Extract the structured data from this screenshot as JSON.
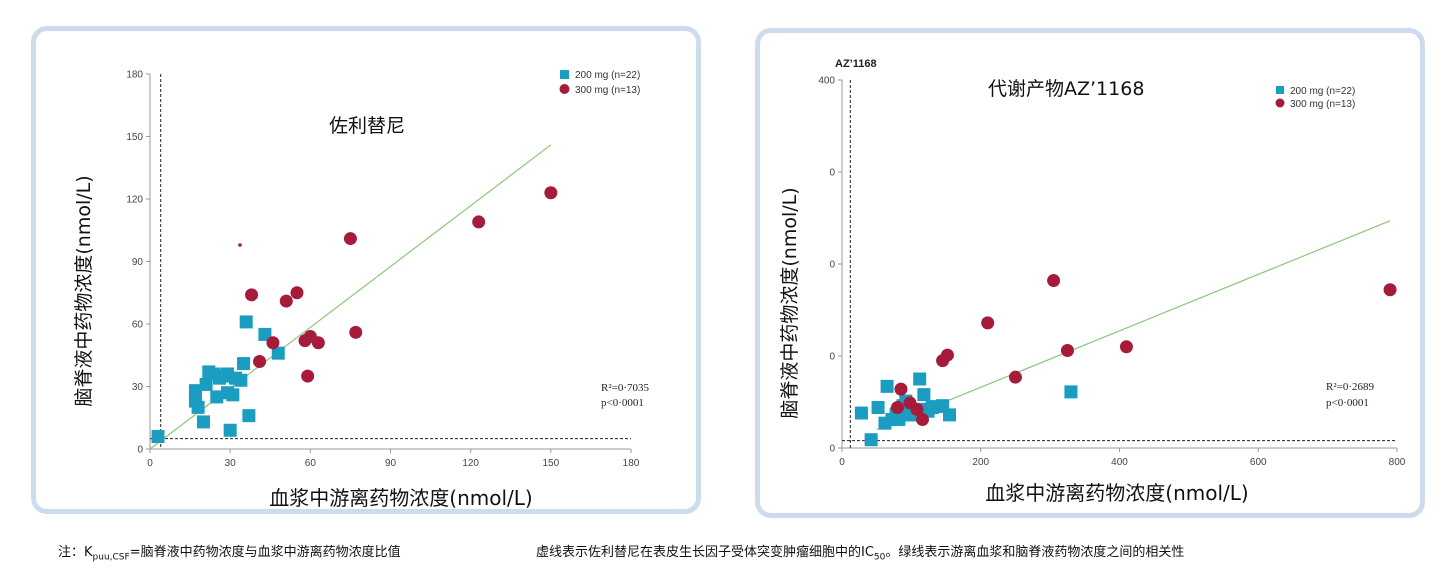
{
  "colors": {
    "series_200": "#1a9dc0",
    "series_300": "#a61a3a",
    "fit": "#8cc67a",
    "panel_border": "#ccdced"
  },
  "chart_data": [
    {
      "type": "scatter",
      "title": "佐利替尼",
      "xlabel": "血浆中游离药物浓度(nmol/L)",
      "ylabel": "脑脊液中药物浓度(nmol/L)",
      "xlim": [
        0,
        180
      ],
      "ylim": [
        0,
        180
      ],
      "xticks": [
        "0",
        "30",
        "60",
        "90",
        "120",
        "150",
        "180"
      ],
      "yticks": [
        "0",
        "30",
        "60",
        "90",
        "120",
        "150",
        "180"
      ],
      "legend_placement": "top-right",
      "legend": [
        "200 mg (n=22)",
        "300 mg (n=13)"
      ],
      "stats": {
        "r2": "R²=0·7035",
        "p": "p<0·0001"
      },
      "dashed_ref": {
        "x": 4,
        "y": 5
      },
      "fit_line": {
        "x1": 0,
        "y1": 0,
        "x2": 150,
        "y2": 146
      },
      "series": [
        {
          "name": "200 mg (n=22)",
          "marker": "square",
          "points": [
            [
              3,
              6
            ],
            [
              17,
              23
            ],
            [
              17,
              28
            ],
            [
              18,
              20
            ],
            [
              20,
              13
            ],
            [
              21,
              31
            ],
            [
              22,
              37
            ],
            [
              24,
              36
            ],
            [
              25,
              25
            ],
            [
              26,
              34
            ],
            [
              28,
              35
            ],
            [
              29,
              27
            ],
            [
              30,
              9
            ],
            [
              31,
              26
            ],
            [
              32,
              34
            ],
            [
              34,
              33
            ],
            [
              35,
              41
            ],
            [
              36,
              61
            ],
            [
              37,
              16
            ],
            [
              43,
              55
            ],
            [
              48,
              46
            ],
            [
              29,
              36
            ]
          ]
        },
        {
          "name": "300 mg (n=13)",
          "marker": "circle",
          "points": [
            [
              38,
              74
            ],
            [
              41,
              42
            ],
            [
              46,
              51
            ],
            [
              51,
              71
            ],
            [
              55,
              75
            ],
            [
              58,
              52
            ],
            [
              59,
              35
            ],
            [
              60,
              54
            ],
            [
              63,
              51
            ],
            [
              75,
              101
            ],
            [
              77,
              56
            ],
            [
              123,
              109
            ],
            [
              150,
              123
            ]
          ]
        }
      ]
    },
    {
      "type": "scatter",
      "title": "代谢产物AZ’1168",
      "corner_label": "AZ’1168",
      "xlabel": "血浆中游离药物浓度(nmol/L)",
      "ylabel": "脑脊液中药物浓度(nmol/L)",
      "xlim": [
        0,
        800
      ],
      "ylim": [
        0,
        400
      ],
      "xticks": [
        "0",
        "200",
        "400",
        "600",
        "800"
      ],
      "yticks": [
        "0",
        "0",
        "0",
        "0",
        "400"
      ],
      "legend_placement": "top-right",
      "legend": [
        "200 mg (n=22)",
        "300 mg (n=13)"
      ],
      "stats": {
        "r2": "R²=0·2689",
        "p": "p<0·0001"
      },
      "dashed_ref": {
        "x": 12,
        "y": 8
      },
      "fit_line": {
        "x1": 50,
        "y1": 20,
        "x2": 790,
        "y2": 247
      },
      "series": [
        {
          "name": "200 mg (n=22)",
          "marker": "square",
          "points": [
            [
              28,
              38
            ],
            [
              42,
              9
            ],
            [
              52,
              44
            ],
            [
              62,
              27
            ],
            [
              65,
              67
            ],
            [
              72,
              31
            ],
            [
              78,
              37
            ],
            [
              82,
              31
            ],
            [
              88,
              46
            ],
            [
              92,
              51
            ],
            [
              95,
              36
            ],
            [
              100,
              36
            ],
            [
              106,
              38
            ],
            [
              112,
              75
            ],
            [
              115,
              42
            ],
            [
              118,
              58
            ],
            [
              124,
              40
            ],
            [
              130,
              44
            ],
            [
              136,
              45
            ],
            [
              145,
              46
            ],
            [
              155,
              36
            ],
            [
              330,
              61
            ]
          ]
        },
        {
          "name": "300 mg (n=13)",
          "marker": "circle",
          "points": [
            [
              80,
              44
            ],
            [
              85,
              64
            ],
            [
              108,
              42
            ],
            [
              116,
              31
            ],
            [
              145,
              95
            ],
            [
              152,
              101
            ],
            [
              210,
              136
            ],
            [
              250,
              77
            ],
            [
              305,
              182
            ],
            [
              325,
              106
            ],
            [
              410,
              110
            ],
            [
              790,
              172
            ],
            [
              98,
              49
            ]
          ]
        }
      ]
    }
  ],
  "notes": {
    "left_prefix": "注：K",
    "left_sub": "puu,CSF",
    "left_suffix": "=脑脊液中药物浓度与血浆中游离药物浓度比值",
    "right_prefix": "虚线表示佐利替尼在表皮生长因子受体突变肿瘤细胞中的IC",
    "right_sub": "50",
    "right_suffix": "。绿线表示游离血浆和脑脊液药物浓度之间的相关性"
  }
}
